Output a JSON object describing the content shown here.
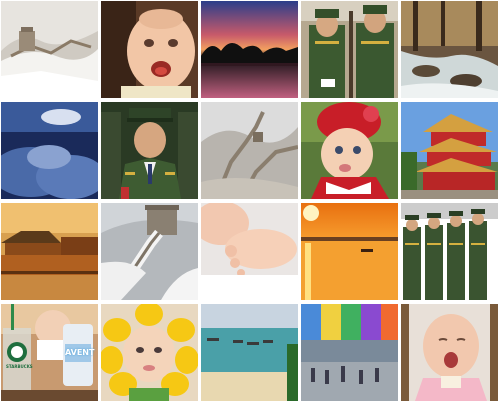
{
  "collage": {
    "tiles": [
      {
        "id": "great-wall-snow"
      },
      {
        "id": "crying-baby"
      },
      {
        "id": "sunset-lake"
      },
      {
        "id": "honor-guard-soldiers"
      },
      {
        "id": "forest-stream"
      },
      {
        "id": "clouds-sky"
      },
      {
        "id": "soldier-portrait"
      },
      {
        "id": "great-wall-hills"
      },
      {
        "id": "baby-red-hat"
      },
      {
        "id": "red-pagoda"
      },
      {
        "id": "forbidden-city-gate-sunset"
      },
      {
        "id": "great-wall-snow-watchtower"
      },
      {
        "id": "baby-feet"
      },
      {
        "id": "orange-sunset-sea"
      },
      {
        "id": "soldiers-marching"
      },
      {
        "id": "baby-starbucks-cup"
      },
      {
        "id": "baby-sunflower-costume"
      },
      {
        "id": "beach-boats"
      },
      {
        "id": "street-mural"
      },
      {
        "id": "baby-yawning"
      }
    ],
    "printed_text": {
      "bottle_label": "AVENT",
      "cup_logo": "STARBUCKS"
    }
  }
}
